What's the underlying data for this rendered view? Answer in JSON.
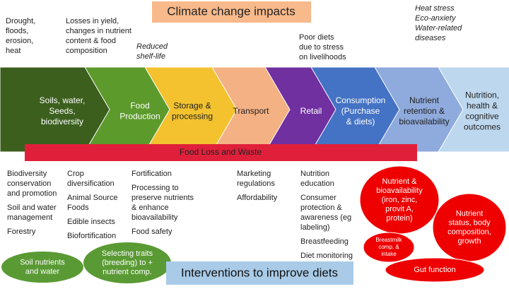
{
  "title": "Climate change impacts",
  "impacts": [
    {
      "lines": [
        "Drought,",
        "floods,",
        "erosion,",
        "heat"
      ],
      "italic": false
    },
    {
      "lines": [
        "Losses in yield,",
        "changes in nutrient",
        "content & food",
        "composition"
      ],
      "italic": false
    },
    {
      "lines": [
        "Reduced",
        "shelf-life"
      ],
      "italic": true
    },
    {
      "lines": [
        "Poor diets",
        "due to stress",
        "on livelihoods"
      ],
      "italic": false
    },
    {
      "lines": [
        "Heat stress",
        "Eco-anxiety",
        "Water-related",
        "diseases"
      ],
      "italic": true
    }
  ],
  "stages": [
    {
      "lines": [
        "Soils, water,",
        "Seeds,",
        "biodiversity"
      ]
    },
    {
      "lines": [
        "Food",
        "Production"
      ]
    },
    {
      "lines": [
        "Storage &",
        "processing"
      ]
    },
    {
      "lines": [
        "Transport"
      ]
    },
    {
      "lines": [
        "Retail"
      ]
    },
    {
      "lines": [
        "Consumption",
        "(Purchase",
        "& diets)"
      ]
    },
    {
      "lines": [
        "Nutrient",
        "retention &",
        "bioavailability"
      ]
    },
    {
      "lines": [
        "Nutrition,",
        "health &",
        "cognitive",
        "outcomes"
      ]
    }
  ],
  "banner": "Food Loss and Waste",
  "columns": [
    {
      "items": [
        {
          "lines": [
            "Biodiversity",
            "conservation",
            "and promotion"
          ]
        },
        {
          "lines": [
            "Soil and water",
            "management"
          ]
        },
        {
          "lines": [
            "Forestry"
          ]
        }
      ]
    },
    {
      "items": [
        {
          "lines": [
            "Crop",
            "diversification"
          ]
        },
        {
          "lines": [
            "Animal Source",
            "Foods"
          ]
        },
        {
          "lines": [
            "Edible insects"
          ]
        },
        {
          "lines": [
            "Biofortification"
          ]
        }
      ]
    },
    {
      "items": [
        {
          "lines": [
            "Fortification"
          ]
        },
        {
          "lines": [
            "Processing to",
            "preserve nutrients",
            "& enhance",
            "bioavailability"
          ]
        },
        {
          "lines": [
            "Food safety"
          ]
        }
      ]
    },
    {
      "items": [
        {
          "lines": [
            "Marketing",
            "regulations"
          ]
        },
        {
          "lines": [
            "Affordability"
          ]
        }
      ]
    },
    {
      "items": [
        {
          "lines": [
            "Nutrition",
            "education"
          ]
        },
        {
          "lines": [
            "Consumer",
            "protection &",
            "awareness (eg",
            "labeling)"
          ]
        },
        {
          "lines": [
            "Breastfeeding"
          ]
        },
        {
          "lines": [
            "Diet monitoring"
          ]
        }
      ]
    }
  ],
  "green_ovals": [
    {
      "lines": [
        "Soil nutrients",
        "and water"
      ]
    },
    {
      "lines": [
        "Selecting traits",
        "(breeding) to +",
        "nutrient comp."
      ]
    }
  ],
  "red_ovals": [
    {
      "lines": [
        "Nutrient &",
        "bioavailability",
        "(iron, zinc,",
        "provit A,",
        "protein)"
      ]
    },
    {
      "lines": [
        "Nutrient",
        "status, body",
        "composition,",
        "growth"
      ]
    },
    {
      "lines": [
        "Breastmilk",
        "comp. &",
        "intake"
      ]
    },
    {
      "lines": [
        "Gut function"
      ]
    }
  ],
  "footer": "Interventions to improve diets"
}
